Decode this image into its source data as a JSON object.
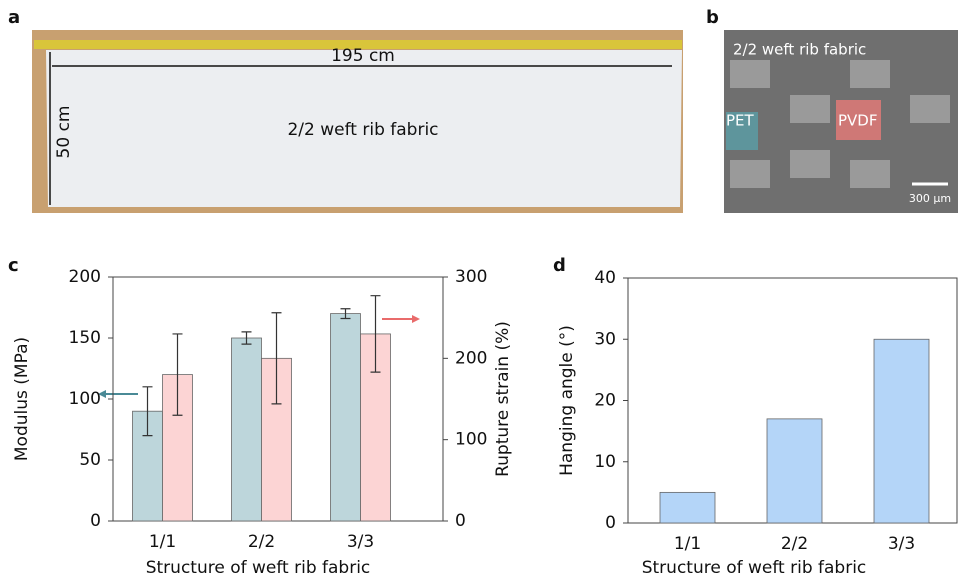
{
  "panels": {
    "a": {
      "label": "a",
      "length": "195 cm",
      "width": "50 cm",
      "caption": "2/2 weft rib fabric"
    },
    "b": {
      "label": "b",
      "caption": "2/2 weft rib fabric",
      "fiber1": "PET",
      "fiber2": "PVDF",
      "scale": "300 μm"
    }
  },
  "chart_data": [
    {
      "type": "bar",
      "panel": "c",
      "categories": [
        "1/1",
        "2/2",
        "3/3"
      ],
      "xlabel": "Structure of weft rib fabric",
      "ylabel": "Modulus (MPa)",
      "y2label": "Rupture strain (%)",
      "ylim": [
        0,
        200
      ],
      "yticks": [
        0,
        50,
        100,
        150,
        200
      ],
      "y2lim": [
        0,
        300
      ],
      "y2ticks": [
        0,
        100,
        200,
        300
      ],
      "series": [
        {
          "color": "#bdd6db",
          "values": [
            90,
            150,
            170
          ],
          "errors": [
            20,
            5,
            4
          ]
        },
        {
          "color": "#fcd4d4",
          "axis": "y2",
          "values": [
            180,
            200,
            230
          ],
          "errors": [
            50,
            56,
            47
          ]
        }
      ]
    },
    {
      "type": "bar",
      "panel": "d",
      "categories": [
        "1/1",
        "2/2",
        "3/3"
      ],
      "xlabel": "Structure of weft rib fabric",
      "ylabel": "Hanging angle (°)",
      "ylim": [
        0,
        40
      ],
      "yticks": [
        0,
        10,
        20,
        30,
        40
      ],
      "color": "#b4d5f8",
      "values": [
        5,
        17,
        30
      ]
    }
  ]
}
